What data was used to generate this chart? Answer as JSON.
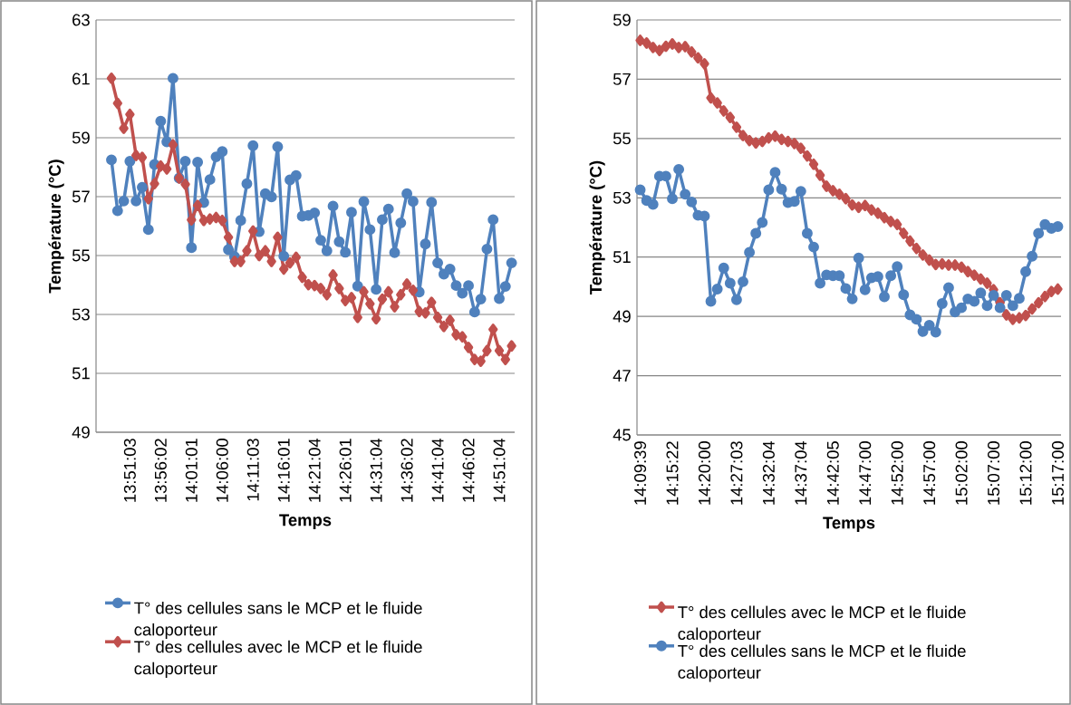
{
  "chart_data": [
    {
      "type": "line",
      "xlabel": "Temps",
      "ylabel": "Température (°C)",
      "ylim": [
        49,
        63
      ],
      "yticks": [
        49,
        51,
        53,
        55,
        57,
        59,
        61,
        63
      ],
      "grid": "y",
      "legend": "bottom",
      "categories": [
        null,
        null,
        null,
        null,
        null,
        "13:51:03",
        null,
        null,
        null,
        null,
        "13:56:02",
        null,
        null,
        null,
        null,
        "14:01:01",
        null,
        null,
        null,
        null,
        "14:06:00",
        null,
        null,
        null,
        null,
        "14:11:03",
        null,
        null,
        null,
        null,
        "14:16:01",
        null,
        null,
        null,
        null,
        "14:21:04",
        null,
        null,
        null,
        null,
        "14:26:01",
        null,
        null,
        null,
        null,
        "14:31:04",
        null,
        null,
        null,
        null,
        "14:36:02",
        null,
        null,
        null,
        null,
        "14:41:04",
        null,
        null,
        null,
        null,
        "14:46:02",
        null,
        null,
        null,
        null,
        "14:51:04",
        null,
        null
      ],
      "series": [
        {
          "name": "T° des cellules sans le MCP et le fluide caloporteur",
          "color": "#4f81bd",
          "marker": "circle",
          "values": [
            null,
            null,
            58.25,
            56.52,
            56.85,
            58.2,
            56.85,
            57.32,
            55.88,
            58.09,
            59.56,
            58.86,
            61.02,
            57.63,
            58.2,
            55.27,
            58.17,
            56.8,
            57.58,
            58.35,
            58.53,
            55.2,
            54.96,
            56.19,
            57.44,
            58.73,
            55.81,
            57.1,
            56.99,
            58.69,
            54.98,
            57.57,
            57.72,
            56.34,
            56.36,
            56.45,
            55.52,
            55.16,
            56.68,
            55.47,
            55.11,
            56.47,
            53.96,
            56.83,
            55.88,
            53.85,
            56.22,
            56.58,
            55.1,
            56.11,
            57.1,
            56.84,
            53.76,
            55.39,
            56.81,
            54.75,
            54.37,
            54.54,
            53.98,
            53.72,
            53.98,
            53.08,
            53.52,
            55.22,
            56.22,
            53.54,
            53.95,
            54.75
          ]
        },
        {
          "name": "T° des cellules avec le MCP et le fluide caloporteur",
          "color": "#c0504d",
          "marker": "diamond",
          "values": [
            null,
            null,
            61.02,
            60.17,
            59.32,
            59.79,
            58.4,
            58.33,
            56.93,
            57.44,
            58.04,
            57.94,
            58.76,
            57.63,
            57.42,
            56.21,
            56.7,
            56.19,
            56.24,
            56.29,
            56.19,
            55.62,
            54.8,
            54.8,
            55.16,
            55.83,
            55.0,
            55.16,
            54.8,
            55.62,
            54.54,
            54.75,
            54.94,
            54.26,
            54.01,
            53.98,
            53.88,
            53.67,
            54.34,
            53.88,
            53.47,
            53.57,
            52.9,
            53.77,
            53.36,
            52.85,
            53.52,
            53.77,
            53.26,
            53.67,
            54.03,
            53.82,
            53.1,
            53.05,
            53.41,
            52.9,
            52.59,
            52.8,
            52.31,
            52.24,
            51.88,
            51.47,
            51.41,
            51.77,
            52.49,
            51.77,
            51.47,
            51.93
          ]
        }
      ]
    },
    {
      "type": "line",
      "xlabel": "Temps",
      "ylabel": "Température (°C)",
      "ylim": [
        45,
        59
      ],
      "yticks": [
        45,
        47,
        49,
        51,
        53,
        55,
        57,
        59
      ],
      "grid": "y",
      "legend": "bottom",
      "categories": [
        "14:09:39",
        null,
        null,
        null,
        null,
        "14:15:22",
        null,
        null,
        null,
        null,
        "14:20:00",
        null,
        null,
        null,
        null,
        "14:27:03",
        null,
        null,
        null,
        null,
        "14:32:04",
        null,
        null,
        null,
        null,
        "14:37:04",
        null,
        null,
        null,
        null,
        "14:42:05",
        null,
        null,
        null,
        null,
        "14:47:00",
        null,
        null,
        null,
        null,
        "14:52:00",
        null,
        null,
        null,
        null,
        "14:57:00",
        null,
        null,
        null,
        null,
        "15:02:00",
        null,
        null,
        null,
        null,
        "15:07:00",
        null,
        null,
        null,
        null,
        "15:12:00",
        null,
        null,
        null,
        null,
        "15:17:00"
      ],
      "series": [
        {
          "name": "T° des cellules avec le MCP et le fluide caloporteur",
          "color": "#c0504d",
          "marker": "diamond",
          "values": [
            58.31,
            58.22,
            58.07,
            57.97,
            58.11,
            58.19,
            58.07,
            58.1,
            57.92,
            57.72,
            57.52,
            56.37,
            56.2,
            55.93,
            55.71,
            55.38,
            55.1,
            54.93,
            54.85,
            54.9,
            55.02,
            55.08,
            54.97,
            54.9,
            54.83,
            54.67,
            54.41,
            54.13,
            53.76,
            53.39,
            53.24,
            53.12,
            52.97,
            52.76,
            52.68,
            52.74,
            52.59,
            52.48,
            52.33,
            52.2,
            52.1,
            51.8,
            51.54,
            51.29,
            51.07,
            50.9,
            50.75,
            50.77,
            50.73,
            50.73,
            50.66,
            50.51,
            50.39,
            50.26,
            50.12,
            49.9,
            49.46,
            49.05,
            48.9,
            48.95,
            49.03,
            49.25,
            49.46,
            49.67,
            49.84,
            49.92
          ]
        },
        {
          "name": "T° des cellules sans le MCP et le fluide caloporteur",
          "color": "#4f81bd",
          "marker": "circle",
          "values": [
            53.27,
            52.91,
            52.78,
            53.73,
            53.73,
            52.97,
            53.96,
            53.12,
            52.86,
            52.41,
            52.38,
            49.51,
            49.92,
            50.63,
            50.12,
            49.56,
            50.17,
            51.16,
            51.8,
            52.17,
            53.27,
            53.86,
            53.29,
            52.84,
            52.88,
            53.22,
            51.8,
            51.34,
            50.12,
            50.4,
            50.37,
            50.37,
            49.94,
            49.59,
            50.97,
            49.9,
            50.3,
            50.34,
            49.66,
            50.37,
            50.68,
            49.73,
            49.05,
            48.9,
            48.49,
            48.7,
            48.47,
            49.43,
            49.97,
            49.15,
            49.29,
            49.59,
            49.51,
            49.79,
            49.36,
            49.71,
            49.29,
            49.71,
            49.36,
            49.61,
            50.51,
            51.03,
            51.8,
            52.1,
            51.97,
            52.03
          ]
        }
      ]
    }
  ]
}
